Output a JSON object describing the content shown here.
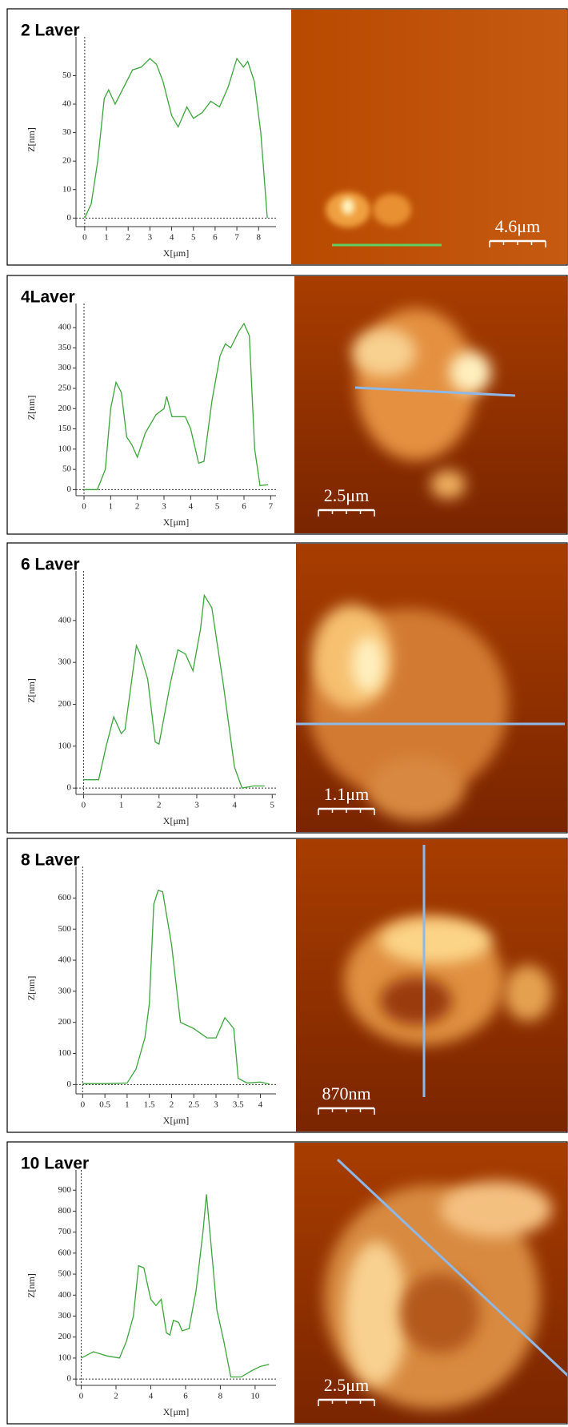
{
  "chart_data": [
    {
      "type": "line",
      "title": "2 Laver",
      "xlabel": "X[μm]",
      "ylabel": "Z[nm]",
      "scale_bar": "4.6μm",
      "x": [
        0,
        0.3,
        0.6,
        0.9,
        1.1,
        1.4,
        1.8,
        2.2,
        2.6,
        3,
        3.3,
        3.6,
        4,
        4.3,
        4.7,
        5,
        5.4,
        5.8,
        6.2,
        6.6,
        7,
        7.3,
        7.5,
        7.8,
        8.1,
        8.4
      ],
      "series": [
        {
          "color": "#3aa63a",
          "values": [
            0,
            5,
            20,
            42,
            45,
            40,
            46,
            52,
            53,
            56,
            54,
            48,
            36,
            32,
            39,
            35,
            37,
            41,
            39,
            46,
            56,
            53,
            55,
            48,
            30,
            0
          ]
        }
      ],
      "xlim": [
        -0.4,
        8.8
      ],
      "ylim": [
        -3,
        58
      ],
      "xticks": [
        0,
        1,
        2,
        3,
        4,
        5,
        6,
        7,
        8
      ],
      "yticks": [
        0,
        10,
        20,
        30,
        40,
        50
      ]
    },
    {
      "type": "line",
      "title": "4Laver",
      "xlabel": "X[μm]",
      "ylabel": "Z[nm]",
      "scale_bar": "2.5μm",
      "x": [
        0,
        0.5,
        0.8,
        1,
        1.2,
        1.4,
        1.6,
        1.8,
        2,
        2.3,
        2.7,
        3,
        3.1,
        3.3,
        3.8,
        4,
        4.3,
        4.5,
        4.8,
        5.1,
        5.3,
        5.5,
        5.8,
        6,
        6.2,
        6.4,
        6.6,
        6.9
      ],
      "series": [
        {
          "color": "#3aa63a",
          "values": [
            0,
            0,
            50,
            200,
            265,
            240,
            130,
            110,
            80,
            140,
            185,
            200,
            230,
            180,
            180,
            150,
            65,
            70,
            220,
            330,
            360,
            350,
            390,
            410,
            380,
            100,
            10,
            12
          ]
        }
      ],
      "xlim": [
        -0.3,
        7.2
      ],
      "ylim": [
        -15,
        420
      ],
      "xticks": [
        0,
        1,
        2,
        3,
        4,
        5,
        6,
        7
      ],
      "yticks": [
        0,
        50,
        100,
        150,
        200,
        250,
        300,
        350,
        400
      ]
    },
    {
      "type": "line",
      "title": "6 Laver",
      "xlabel": "X[μm]",
      "ylabel": "Z[nm]",
      "scale_bar": "1.1μm",
      "x": [
        0,
        0.4,
        0.6,
        0.8,
        1,
        1.1,
        1.4,
        1.5,
        1.7,
        1.9,
        2,
        2.3,
        2.5,
        2.7,
        2.9,
        3.1,
        3.2,
        3.4,
        3.7,
        4,
        4.2,
        4.5,
        4.8
      ],
      "series": [
        {
          "color": "#3aa63a",
          "values": [
            20,
            20,
            100,
            170,
            130,
            140,
            340,
            320,
            260,
            110,
            105,
            250,
            330,
            320,
            280,
            380,
            460,
            430,
            250,
            50,
            0,
            5,
            5
          ]
        }
      ],
      "xlim": [
        -0.2,
        5.1
      ],
      "ylim": [
        -15,
        480
      ],
      "xticks": [
        0,
        1,
        2,
        3,
        4,
        5
      ],
      "yticks": [
        0,
        100,
        200,
        300,
        400
      ]
    },
    {
      "type": "line",
      "title": "8 Laver",
      "xlabel": "X[μm]",
      "ylabel": "Z[nm]",
      "scale_bar": "870nm",
      "x": [
        0,
        0.5,
        1,
        1.2,
        1.4,
        1.5,
        1.6,
        1.7,
        1.8,
        2,
        2.2,
        2.5,
        2.8,
        3,
        3.2,
        3.4,
        3.5,
        3.7,
        4,
        4.2
      ],
      "series": [
        {
          "color": "#3aa63a",
          "values": [
            3,
            3,
            5,
            50,
            150,
            260,
            580,
            625,
            620,
            450,
            200,
            180,
            150,
            150,
            215,
            180,
            20,
            5,
            8,
            2
          ]
        }
      ],
      "xlim": [
        -0.15,
        4.35
      ],
      "ylim": [
        -30,
        650
      ],
      "xticks": [
        0,
        0.5,
        1,
        1.5,
        2,
        2.5,
        3,
        3.5,
        4
      ],
      "yticks": [
        0,
        100,
        200,
        300,
        400,
        500,
        600
      ]
    },
    {
      "type": "line",
      "title": "10 Laver",
      "xlabel": "X[μm]",
      "ylabel": "Z[nm]",
      "scale_bar": "2.5μm",
      "x": [
        0,
        0.7,
        1.5,
        2.2,
        2.6,
        3,
        3.3,
        3.6,
        4,
        4.3,
        4.6,
        4.9,
        5.1,
        5.3,
        5.6,
        5.8,
        6.2,
        6.6,
        7,
        7.2,
        7.4,
        7.8,
        8.2,
        8.6,
        9.2,
        9.8,
        10.3,
        10.8
      ],
      "series": [
        {
          "color": "#3aa63a",
          "values": [
            100,
            130,
            110,
            100,
            180,
            300,
            540,
            530,
            380,
            350,
            380,
            220,
            210,
            280,
            270,
            230,
            240,
            420,
            700,
            880,
            700,
            330,
            180,
            10,
            10,
            40,
            60,
            70
          ]
        }
      ],
      "xlim": [
        -0.3,
        11.2
      ],
      "ylim": [
        -30,
        920
      ],
      "xticks": [
        0,
        2,
        4,
        6,
        8,
        10
      ],
      "yticks": [
        0,
        100,
        200,
        300,
        400,
        500,
        600,
        700,
        800,
        900
      ]
    }
  ]
}
